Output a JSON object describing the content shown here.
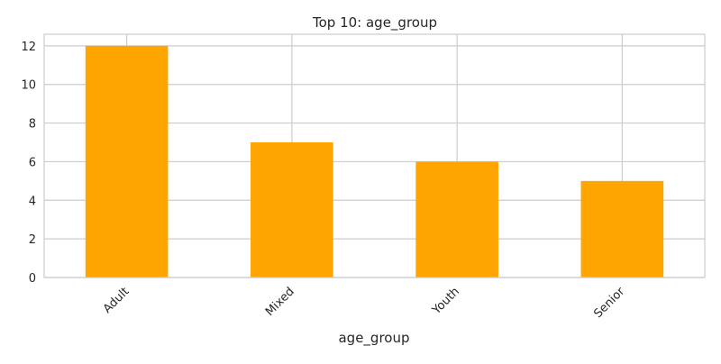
{
  "chart_data": {
    "type": "bar",
    "title": "Top 10: age_group",
    "xlabel": "age_group",
    "ylabel": "",
    "categories": [
      "Adult",
      "Mixed",
      "Youth",
      "Senior"
    ],
    "values": [
      12,
      7,
      6,
      5
    ],
    "ylim": [
      0,
      12.6
    ],
    "yticks": [
      0,
      2,
      4,
      6,
      8,
      10,
      12
    ],
    "grid": true,
    "legend": "none",
    "bar_color": "#FFA500",
    "grid_color": "#CCCCCC",
    "axes_edge_color": "#CCCCCC"
  }
}
